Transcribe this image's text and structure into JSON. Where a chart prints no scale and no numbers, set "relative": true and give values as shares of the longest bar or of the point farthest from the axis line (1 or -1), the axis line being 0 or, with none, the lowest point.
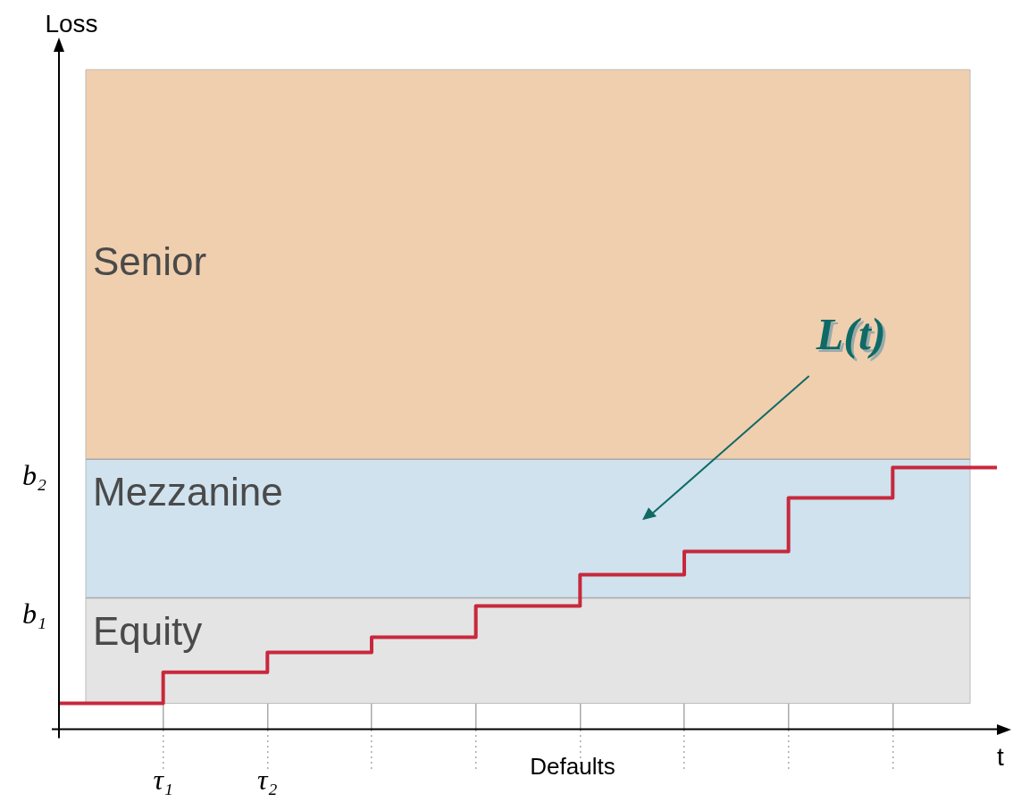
{
  "chart_data": {
    "type": "step",
    "relative": true,
    "xlabel": "t",
    "categories": [
      null,
      "τ₁",
      "τ₂",
      null,
      null,
      null,
      null,
      null,
      null,
      null
    ],
    "series": [
      {
        "color": "#c8283c",
        "values": [
          0.099,
          0.218,
          0.294,
          0.352,
          0.471,
          0.59,
          0.679,
          0.884,
          1,
          1
        ]
      }
    ],
    "bands": [
      {
        "axis": "y",
        "from": 0.099,
        "to": 0.502,
        "label": "Equity",
        "color": "#e4e4e4"
      },
      {
        "axis": "y",
        "from": 0.502,
        "to": 1.031,
        "label": "Mezzanine",
        "color": "#cfe2ee"
      },
      {
        "axis": "y",
        "from": 1.031,
        "to": 2.519,
        "label": "Senior",
        "color": "#f0cfae"
      }
    ],
    "ref_lines": [
      {
        "axis": "y",
        "value": 0.502,
        "label": "b₁",
        "color": "#aaaaaa"
      },
      {
        "axis": "y",
        "value": 1.031,
        "label": "b₂",
        "color": "#aaaaaa"
      }
    ],
    "annotations": [
      "Loss",
      "L(t)",
      "Defaults"
    ],
    "grid": "x",
    "legend": false
  }
}
